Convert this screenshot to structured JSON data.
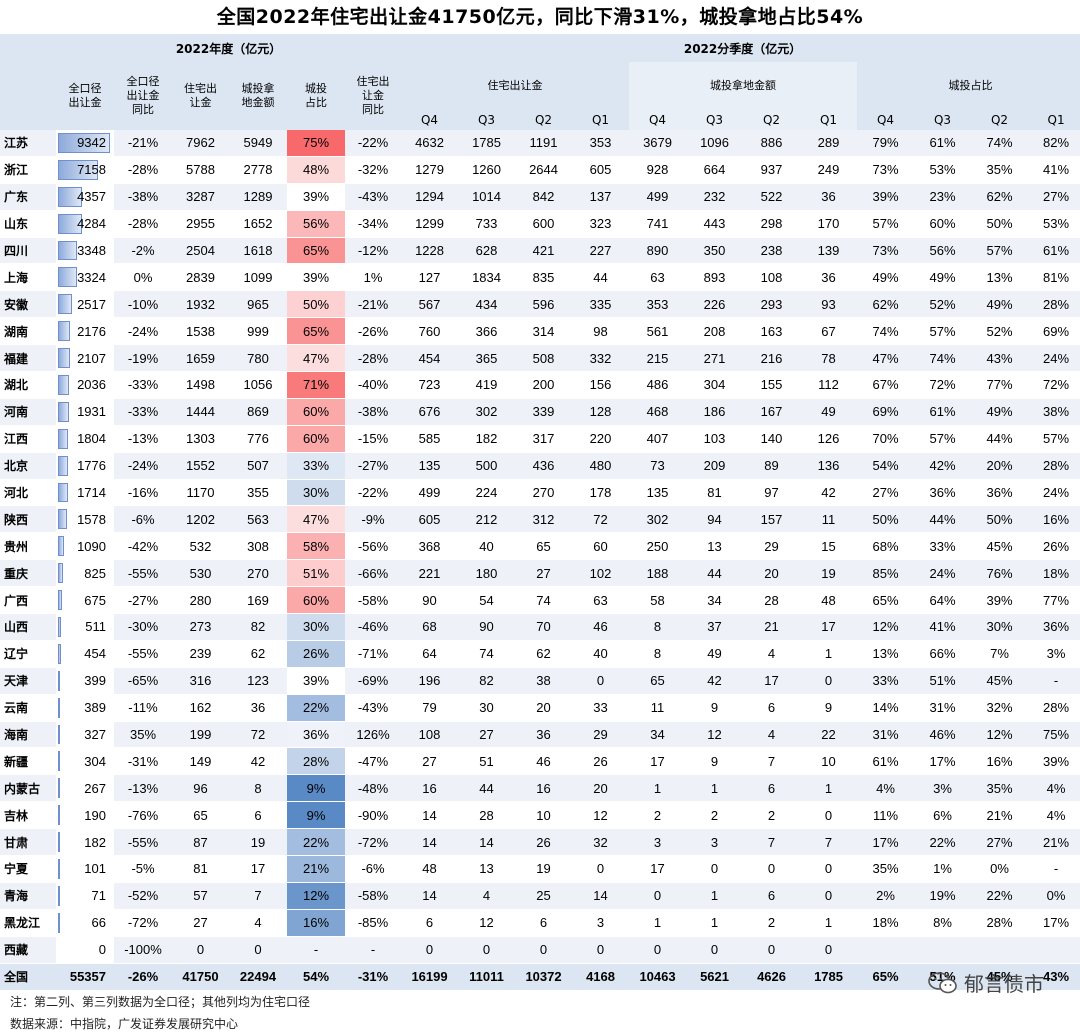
{
  "title": "全国2022年住宅出让金41750亿元，同比下滑31%，城投拿地占比54%",
  "header": {
    "annual_group": "2022年度（亿元）",
    "quarterly_group": "2022分季度（亿元）",
    "annual_cols": [
      "全口径\n出让金",
      "全口径\n出让金\n同比",
      "住宅出\n让金",
      "城投拿\n地金额",
      "城投\n占比",
      "住宅出\n让金\n同比"
    ],
    "quarter_groups": [
      "住宅出让金",
      "城投拿地金额",
      "城投占比"
    ],
    "quarters": [
      "Q4",
      "Q3",
      "Q2",
      "Q1"
    ]
  },
  "max_total": 9342,
  "rows": [
    {
      "p": "江苏",
      "t": 9342,
      "ty": "-21%",
      "r": "7962",
      "c": "5949",
      "s": 75,
      "sl": "75%",
      "ry": "-22%",
      "rq": [
        "4632",
        "1785",
        "1191",
        "353"
      ],
      "cq": [
        "3679",
        "1096",
        "886",
        "289"
      ],
      "sq": [
        "79%",
        "61%",
        "74%",
        "82%"
      ]
    },
    {
      "p": "浙江",
      "t": 7158,
      "ty": "-28%",
      "r": "5788",
      "c": "2778",
      "s": 48,
      "sl": "48%",
      "ry": "-32%",
      "rq": [
        "1279",
        "1260",
        "2644",
        "605"
      ],
      "cq": [
        "928",
        "664",
        "937",
        "249"
      ],
      "sq": [
        "73%",
        "53%",
        "35%",
        "41%"
      ]
    },
    {
      "p": "广东",
      "t": 4357,
      "ty": "-38%",
      "r": "3287",
      "c": "1289",
      "s": 39,
      "sl": "39%",
      "ry": "-43%",
      "rq": [
        "1294",
        "1014",
        "842",
        "137"
      ],
      "cq": [
        "499",
        "232",
        "522",
        "36"
      ],
      "sq": [
        "39%",
        "23%",
        "62%",
        "27%"
      ]
    },
    {
      "p": "山东",
      "t": 4284,
      "ty": "-28%",
      "r": "2955",
      "c": "1652",
      "s": 56,
      "sl": "56%",
      "ry": "-34%",
      "rq": [
        "1299",
        "733",
        "600",
        "323"
      ],
      "cq": [
        "741",
        "443",
        "298",
        "170"
      ],
      "sq": [
        "57%",
        "60%",
        "50%",
        "53%"
      ]
    },
    {
      "p": "四川",
      "t": 3348,
      "ty": "-2%",
      "r": "2504",
      "c": "1618",
      "s": 65,
      "sl": "65%",
      "ry": "-12%",
      "rq": [
        "1228",
        "628",
        "421",
        "227"
      ],
      "cq": [
        "890",
        "350",
        "238",
        "139"
      ],
      "sq": [
        "73%",
        "56%",
        "57%",
        "61%"
      ]
    },
    {
      "p": "上海",
      "t": 3324,
      "ty": "0%",
      "r": "2839",
      "c": "1099",
      "s": 39,
      "sl": "39%",
      "ry": "1%",
      "rq": [
        "127",
        "1834",
        "835",
        "44"
      ],
      "cq": [
        "63",
        "893",
        "108",
        "36"
      ],
      "sq": [
        "49%",
        "49%",
        "13%",
        "81%"
      ]
    },
    {
      "p": "安徽",
      "t": 2517,
      "ty": "-10%",
      "r": "1932",
      "c": "965",
      "s": 50,
      "sl": "50%",
      "ry": "-21%",
      "rq": [
        "567",
        "434",
        "596",
        "335"
      ],
      "cq": [
        "353",
        "226",
        "293",
        "93"
      ],
      "sq": [
        "62%",
        "52%",
        "49%",
        "28%"
      ]
    },
    {
      "p": "湖南",
      "t": 2176,
      "ty": "-24%",
      "r": "1538",
      "c": "999",
      "s": 65,
      "sl": "65%",
      "ry": "-26%",
      "rq": [
        "760",
        "366",
        "314",
        "98"
      ],
      "cq": [
        "561",
        "208",
        "163",
        "67"
      ],
      "sq": [
        "74%",
        "57%",
        "52%",
        "69%"
      ]
    },
    {
      "p": "福建",
      "t": 2107,
      "ty": "-19%",
      "r": "1659",
      "c": "780",
      "s": 47,
      "sl": "47%",
      "ry": "-28%",
      "rq": [
        "454",
        "365",
        "508",
        "332"
      ],
      "cq": [
        "215",
        "271",
        "216",
        "78"
      ],
      "sq": [
        "47%",
        "74%",
        "43%",
        "24%"
      ]
    },
    {
      "p": "湖北",
      "t": 2036,
      "ty": "-33%",
      "r": "1498",
      "c": "1056",
      "s": 71,
      "sl": "71%",
      "ry": "-40%",
      "rq": [
        "723",
        "419",
        "200",
        "156"
      ],
      "cq": [
        "486",
        "304",
        "155",
        "112"
      ],
      "sq": [
        "67%",
        "72%",
        "77%",
        "72%"
      ]
    },
    {
      "p": "河南",
      "t": 1931,
      "ty": "-33%",
      "r": "1444",
      "c": "869",
      "s": 60,
      "sl": "60%",
      "ry": "-38%",
      "rq": [
        "676",
        "302",
        "339",
        "128"
      ],
      "cq": [
        "468",
        "186",
        "167",
        "49"
      ],
      "sq": [
        "69%",
        "61%",
        "49%",
        "38%"
      ]
    },
    {
      "p": "江西",
      "t": 1804,
      "ty": "-13%",
      "r": "1303",
      "c": "776",
      "s": 60,
      "sl": "60%",
      "ry": "-15%",
      "rq": [
        "585",
        "182",
        "317",
        "220"
      ],
      "cq": [
        "407",
        "103",
        "140",
        "126"
      ],
      "sq": [
        "70%",
        "57%",
        "44%",
        "57%"
      ]
    },
    {
      "p": "北京",
      "t": 1776,
      "ty": "-24%",
      "r": "1552",
      "c": "507",
      "s": 33,
      "sl": "33%",
      "ry": "-27%",
      "rq": [
        "135",
        "500",
        "436",
        "480"
      ],
      "cq": [
        "73",
        "209",
        "89",
        "136"
      ],
      "sq": [
        "54%",
        "42%",
        "20%",
        "28%"
      ]
    },
    {
      "p": "河北",
      "t": 1714,
      "ty": "-16%",
      "r": "1170",
      "c": "355",
      "s": 30,
      "sl": "30%",
      "ry": "-22%",
      "rq": [
        "499",
        "224",
        "270",
        "178"
      ],
      "cq": [
        "135",
        "81",
        "97",
        "42"
      ],
      "sq": [
        "27%",
        "36%",
        "36%",
        "24%"
      ]
    },
    {
      "p": "陕西",
      "t": 1578,
      "ty": "-6%",
      "r": "1202",
      "c": "563",
      "s": 47,
      "sl": "47%",
      "ry": "-9%",
      "rq": [
        "605",
        "212",
        "312",
        "72"
      ],
      "cq": [
        "302",
        "94",
        "157",
        "11"
      ],
      "sq": [
        "50%",
        "44%",
        "50%",
        "16%"
      ]
    },
    {
      "p": "贵州",
      "t": 1090,
      "ty": "-42%",
      "r": "532",
      "c": "308",
      "s": 58,
      "sl": "58%",
      "ry": "-56%",
      "rq": [
        "368",
        "40",
        "65",
        "60"
      ],
      "cq": [
        "250",
        "13",
        "29",
        "15"
      ],
      "sq": [
        "68%",
        "33%",
        "45%",
        "26%"
      ]
    },
    {
      "p": "重庆",
      "t": 825,
      "ty": "-55%",
      "r": "530",
      "c": "270",
      "s": 51,
      "sl": "51%",
      "ry": "-66%",
      "rq": [
        "221",
        "180",
        "27",
        "102"
      ],
      "cq": [
        "188",
        "44",
        "20",
        "19"
      ],
      "sq": [
        "85%",
        "24%",
        "76%",
        "18%"
      ]
    },
    {
      "p": "广西",
      "t": 675,
      "ty": "-27%",
      "r": "280",
      "c": "169",
      "s": 60,
      "sl": "60%",
      "ry": "-58%",
      "rq": [
        "90",
        "54",
        "74",
        "63"
      ],
      "cq": [
        "58",
        "34",
        "28",
        "48"
      ],
      "sq": [
        "65%",
        "64%",
        "39%",
        "77%"
      ]
    },
    {
      "p": "山西",
      "t": 511,
      "ty": "-30%",
      "r": "273",
      "c": "82",
      "s": 30,
      "sl": "30%",
      "ry": "-46%",
      "rq": [
        "68",
        "90",
        "70",
        "46"
      ],
      "cq": [
        "8",
        "37",
        "21",
        "17"
      ],
      "sq": [
        "12%",
        "41%",
        "30%",
        "36%"
      ]
    },
    {
      "p": "辽宁",
      "t": 454,
      "ty": "-55%",
      "r": "239",
      "c": "62",
      "s": 26,
      "sl": "26%",
      "ry": "-71%",
      "rq": [
        "64",
        "74",
        "62",
        "40"
      ],
      "cq": [
        "8",
        "49",
        "4",
        "1"
      ],
      "sq": [
        "13%",
        "66%",
        "7%",
        "3%"
      ]
    },
    {
      "p": "天津",
      "t": 399,
      "ty": "-65%",
      "r": "316",
      "c": "123",
      "s": 39,
      "sl": "39%",
      "ry": "-69%",
      "rq": [
        "196",
        "82",
        "38",
        "0"
      ],
      "cq": [
        "65",
        "42",
        "17",
        "0"
      ],
      "sq": [
        "33%",
        "51%",
        "45%",
        "-"
      ]
    },
    {
      "p": "云南",
      "t": 389,
      "ty": "-11%",
      "r": "162",
      "c": "36",
      "s": 22,
      "sl": "22%",
      "ry": "-43%",
      "rq": [
        "79",
        "30",
        "20",
        "33"
      ],
      "cq": [
        "11",
        "9",
        "6",
        "9"
      ],
      "sq": [
        "14%",
        "31%",
        "32%",
        "28%"
      ]
    },
    {
      "p": "海南",
      "t": 327,
      "ty": "35%",
      "r": "199",
      "c": "72",
      "s": 36,
      "sl": "36%",
      "ry": "126%",
      "rq": [
        "108",
        "27",
        "36",
        "29"
      ],
      "cq": [
        "34",
        "12",
        "4",
        "22"
      ],
      "sq": [
        "31%",
        "46%",
        "12%",
        "75%"
      ]
    },
    {
      "p": "新疆",
      "t": 304,
      "ty": "-31%",
      "r": "149",
      "c": "42",
      "s": 28,
      "sl": "28%",
      "ry": "-47%",
      "rq": [
        "27",
        "51",
        "46",
        "26"
      ],
      "cq": [
        "17",
        "9",
        "7",
        "10"
      ],
      "sq": [
        "61%",
        "17%",
        "16%",
        "39%"
      ]
    },
    {
      "p": "内蒙古",
      "t": 267,
      "ty": "-13%",
      "r": "96",
      "c": "8",
      "s": 9,
      "sl": "9%",
      "ry": "-48%",
      "rq": [
        "16",
        "44",
        "16",
        "20"
      ],
      "cq": [
        "1",
        "1",
        "6",
        "1"
      ],
      "sq": [
        "4%",
        "3%",
        "35%",
        "4%"
      ]
    },
    {
      "p": "吉林",
      "t": 190,
      "ty": "-76%",
      "r": "65",
      "c": "6",
      "s": 9,
      "sl": "9%",
      "ry": "-90%",
      "rq": [
        "14",
        "28",
        "10",
        "12"
      ],
      "cq": [
        "2",
        "2",
        "2",
        "0"
      ],
      "sq": [
        "11%",
        "6%",
        "21%",
        "4%"
      ]
    },
    {
      "p": "甘肃",
      "t": 182,
      "ty": "-55%",
      "r": "87",
      "c": "19",
      "s": 22,
      "sl": "22%",
      "ry": "-72%",
      "rq": [
        "14",
        "14",
        "26",
        "32"
      ],
      "cq": [
        "3",
        "3",
        "7",
        "7"
      ],
      "sq": [
        "17%",
        "22%",
        "27%",
        "21%"
      ]
    },
    {
      "p": "宁夏",
      "t": 101,
      "ty": "-5%",
      "r": "81",
      "c": "17",
      "s": 21,
      "sl": "21%",
      "ry": "-6%",
      "rq": [
        "48",
        "13",
        "19",
        "0"
      ],
      "cq": [
        "17",
        "0",
        "0",
        "0"
      ],
      "sq": [
        "35%",
        "1%",
        "0%",
        "-"
      ]
    },
    {
      "p": "青海",
      "t": 71,
      "ty": "-52%",
      "r": "57",
      "c": "7",
      "s": 12,
      "sl": "12%",
      "ry": "-58%",
      "rq": [
        "14",
        "4",
        "25",
        "14"
      ],
      "cq": [
        "0",
        "1",
        "6",
        "0"
      ],
      "sq": [
        "2%",
        "19%",
        "22%",
        "0%"
      ]
    },
    {
      "p": "黑龙江",
      "t": 66,
      "ty": "-72%",
      "r": "27",
      "c": "4",
      "s": 16,
      "sl": "16%",
      "ry": "-85%",
      "rq": [
        "6",
        "12",
        "6",
        "3"
      ],
      "cq": [
        "1",
        "1",
        "2",
        "1"
      ],
      "sq": [
        "18%",
        "8%",
        "28%",
        "17%"
      ]
    },
    {
      "p": "西藏",
      "t": 0,
      "ty": "-100%",
      "r": "0",
      "c": "0",
      "s": null,
      "sl": "-",
      "ry": "-",
      "rq": [
        "0",
        "0",
        "0",
        "0"
      ],
      "cq": [
        "0",
        "0",
        "0",
        "0"
      ],
      "sq": [
        "",
        "",
        "",
        ""
      ]
    }
  ],
  "total": {
    "p": "全国",
    "t": "55357",
    "ty": "-26%",
    "r": "41750",
    "c": "22494",
    "sl": "54%",
    "ry": "-31%",
    "rq": [
      "16199",
      "11011",
      "10372",
      "4168"
    ],
    "cq": [
      "10463",
      "5621",
      "4626",
      "1785"
    ],
    "sq": [
      "65%",
      "51%",
      "45%",
      "43%"
    ]
  },
  "colors": {
    "high": "#f8696b",
    "mid": "#ffffff",
    "low": "#5a8ac6",
    "bar": "#8eaadb"
  },
  "footer": {
    "note": "注：第二列、第三列数据为全口径；其他列均为住宅口径",
    "source": "数据来源：中指院，广发证券发展研究中心"
  },
  "watermark": {
    "text": "郁言债市",
    "icon": "wechat-icon"
  }
}
